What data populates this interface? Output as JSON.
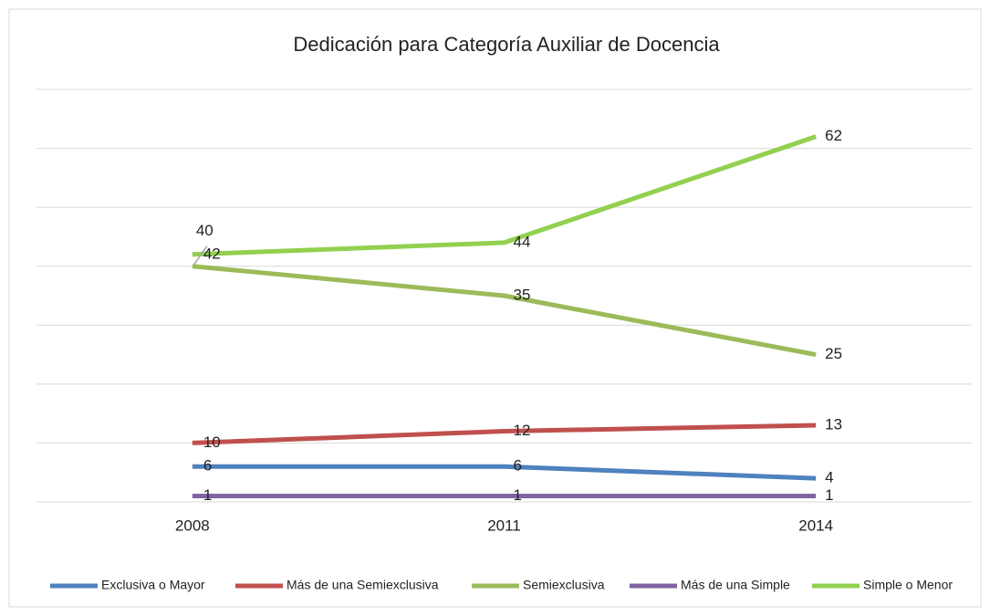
{
  "chart_data": {
    "type": "line",
    "title": "Dedicación para Categoría Auxiliar de Docencia",
    "categories": [
      "2008",
      "2011",
      "2014"
    ],
    "series": [
      {
        "name": "Exclusiva o Mayor",
        "color": "#4f81bd",
        "values": [
          6,
          6,
          4
        ]
      },
      {
        "name": "Más de una Semiexclusiva",
        "color": "#c0504d",
        "values": [
          10,
          12,
          13
        ]
      },
      {
        "name": "Semiexclusiva",
        "color": "#9bbb59",
        "values": [
          40,
          35,
          25
        ]
      },
      {
        "name": "Más de una Simple",
        "color": "#8064a2",
        "values": [
          1,
          1,
          1
        ]
      },
      {
        "name": "Simple o Menor",
        "color": "#92d050",
        "values": [
          42,
          44,
          62
        ]
      }
    ],
    "ylim": [
      0,
      70
    ],
    "yticks": [
      0,
      10,
      20,
      30,
      40,
      50,
      60,
      70
    ],
    "grid": true,
    "legend": "bottom"
  }
}
